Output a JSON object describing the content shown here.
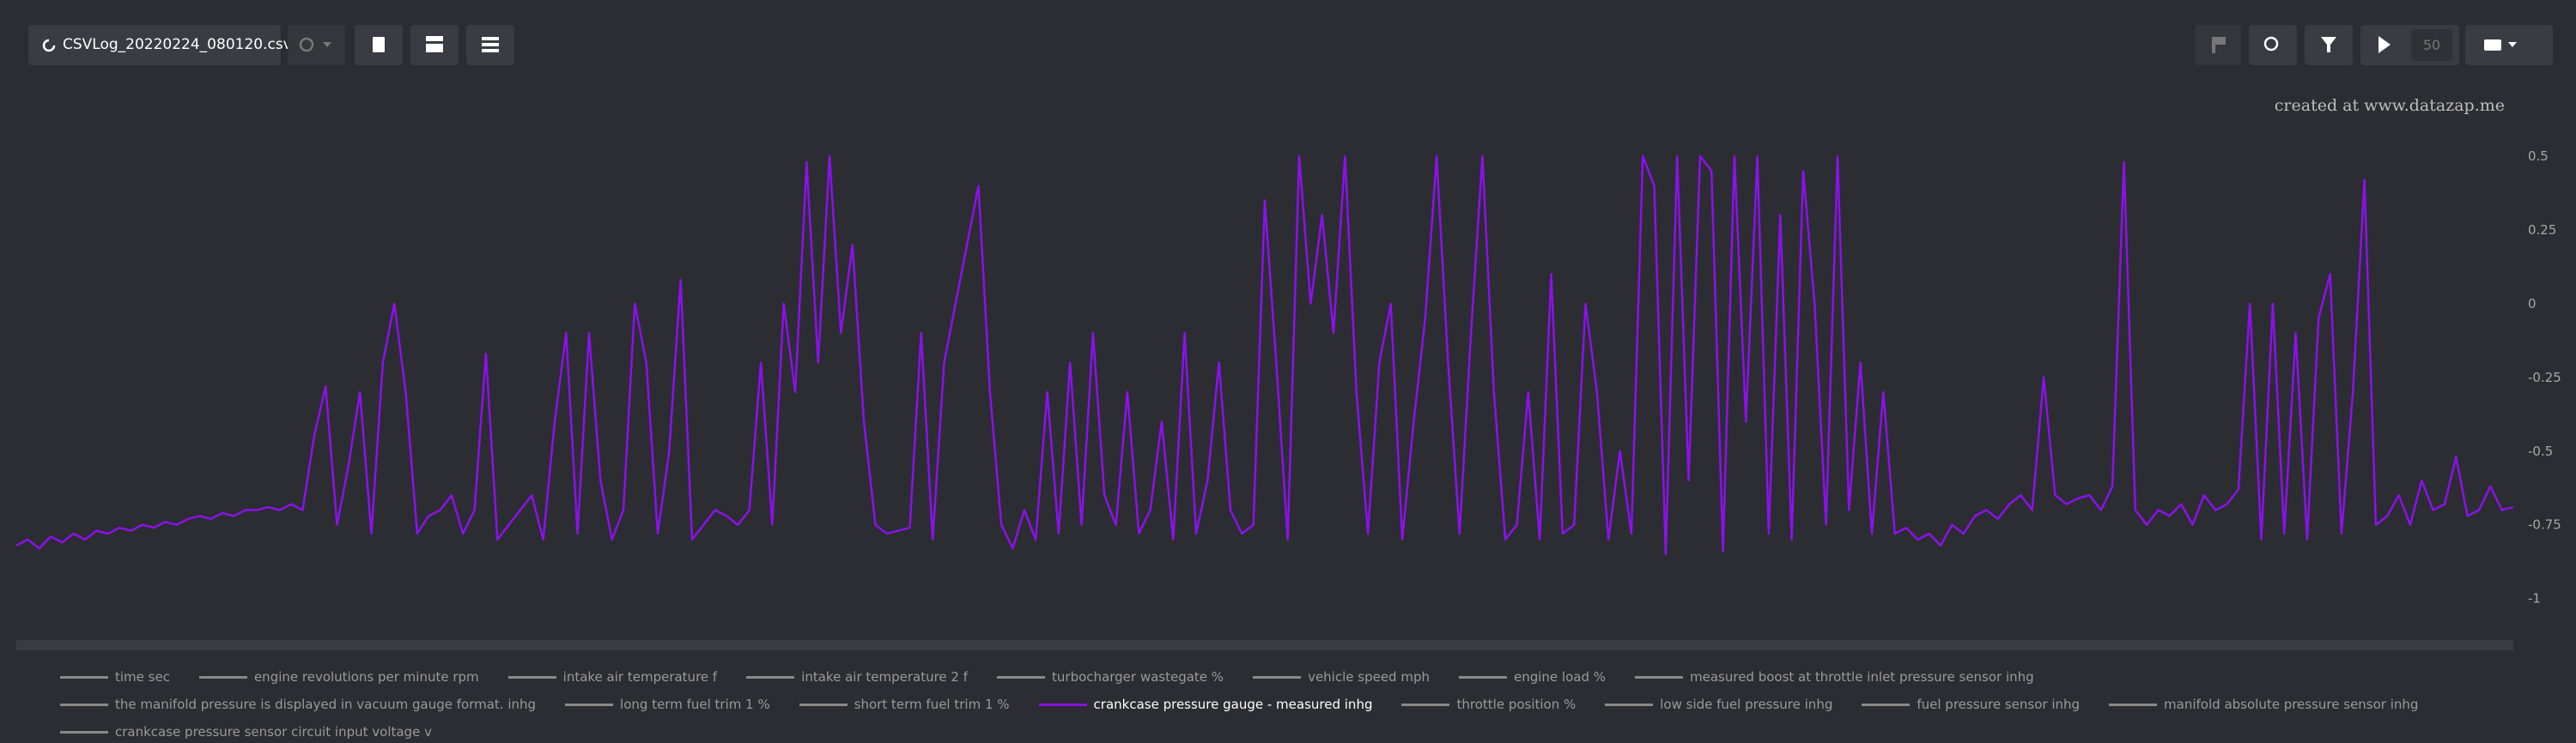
{
  "toolbar": {
    "file_name": "CSVLog_20220224_080120.csv",
    "playback_value": "50"
  },
  "watermark": "created at www.datazap.me",
  "chart_data": {
    "type": "line",
    "ylim": [
      -1.1,
      0.5
    ],
    "yticks": [
      0.5,
      0.25,
      0,
      -0.25,
      -0.5,
      -0.75,
      -1
    ],
    "series": [
      {
        "name": "time sec",
        "color": "#8a8a8a",
        "hidden": true
      },
      {
        "name": "engine revolutions per minute rpm",
        "color": "#8a8a8a",
        "hidden": true
      },
      {
        "name": "intake air temperature f",
        "color": "#8a8a8a",
        "hidden": true
      },
      {
        "name": "intake air temperature 2 f",
        "color": "#8a8a8a",
        "hidden": true
      },
      {
        "name": "turbocharger wastegate %",
        "color": "#8a8a8a",
        "hidden": true
      },
      {
        "name": "vehicle speed mph",
        "color": "#8a8a8a",
        "hidden": true
      },
      {
        "name": "engine load %",
        "color": "#8a8a8a",
        "hidden": true
      },
      {
        "name": "measured boost at throttle inlet pressure sensor inhg",
        "color": "#8a8a8a",
        "hidden": true
      },
      {
        "name": "the manifold pressure is displayed in vacuum gauge format. inhg",
        "color": "#8a8a8a",
        "hidden": true
      },
      {
        "name": "long term fuel trim 1 %",
        "color": "#8a8a8a",
        "hidden": true
      },
      {
        "name": "short term fuel trim 1 %",
        "color": "#8a8a8a",
        "hidden": true
      },
      {
        "name": "crankcase pressure gauge - measured inhg",
        "color": "#8a12e8",
        "hidden": false,
        "values": [
          -0.82,
          -0.8,
          -0.83,
          -0.79,
          -0.81,
          -0.78,
          -0.8,
          -0.77,
          -0.78,
          -0.76,
          -0.77,
          -0.75,
          -0.76,
          -0.74,
          -0.75,
          -0.73,
          -0.72,
          -0.73,
          -0.71,
          -0.72,
          -0.7,
          -0.7,
          -0.69,
          -0.7,
          -0.68,
          -0.7,
          -0.45,
          -0.28,
          -0.75,
          -0.55,
          -0.3,
          -0.78,
          -0.2,
          0.0,
          -0.3,
          -0.78,
          -0.72,
          -0.7,
          -0.65,
          -0.78,
          -0.7,
          -0.17,
          -0.8,
          -0.75,
          -0.7,
          -0.65,
          -0.8,
          -0.4,
          -0.1,
          -0.78,
          -0.1,
          -0.6,
          -0.8,
          -0.7,
          0.0,
          -0.2,
          -0.78,
          -0.5,
          0.08,
          -0.8,
          -0.75,
          -0.7,
          -0.72,
          -0.75,
          -0.7,
          -0.2,
          -0.75,
          0.0,
          -0.3,
          0.48,
          -0.2,
          0.5,
          -0.1,
          0.2,
          -0.4,
          -0.75,
          -0.78,
          -0.77,
          -0.76,
          -0.1,
          -0.8,
          -0.2,
          0.0,
          0.2,
          0.4,
          -0.3,
          -0.75,
          -0.83,
          -0.7,
          -0.8,
          -0.3,
          -0.78,
          -0.2,
          -0.75,
          -0.1,
          -0.65,
          -0.75,
          -0.3,
          -0.78,
          -0.7,
          -0.4,
          -0.8,
          -0.1,
          -0.78,
          -0.6,
          -0.2,
          -0.7,
          -0.78,
          -0.75,
          0.35,
          -0.2,
          -0.8,
          0.5,
          0.0,
          0.3,
          -0.1,
          0.5,
          -0.3,
          -0.78,
          -0.2,
          0.0,
          -0.8,
          -0.4,
          -0.05,
          0.5,
          -0.2,
          -0.78,
          -0.1,
          0.5,
          -0.3,
          -0.8,
          -0.75,
          -0.3,
          -0.8,
          0.1,
          -0.78,
          -0.75,
          0.0,
          -0.3,
          -0.8,
          -0.5,
          -0.78,
          0.5,
          0.4,
          -0.85,
          0.5,
          -0.6,
          0.5,
          0.45,
          -0.84,
          0.5,
          -0.4,
          0.5,
          -0.78,
          0.3,
          -0.8,
          0.45,
          0.0,
          -0.75,
          0.5,
          -0.7,
          -0.2,
          -0.78,
          -0.3,
          -0.78,
          -0.76,
          -0.8,
          -0.78,
          -0.82,
          -0.75,
          -0.78,
          -0.72,
          -0.7,
          -0.73,
          -0.68,
          -0.65,
          -0.7,
          -0.25,
          -0.65,
          -0.68,
          -0.66,
          -0.65,
          -0.7,
          -0.62,
          0.48,
          -0.7,
          -0.75,
          -0.7,
          -0.72,
          -0.68,
          -0.75,
          -0.65,
          -0.7,
          -0.68,
          -0.63,
          0.0,
          -0.8,
          0.0,
          -0.78,
          -0.1,
          -0.8,
          -0.05,
          0.1,
          -0.78,
          -0.3,
          0.42,
          -0.75,
          -0.72,
          -0.65,
          -0.75,
          -0.6,
          -0.7,
          -0.68,
          -0.52,
          -0.72,
          -0.7,
          -0.62,
          -0.7,
          -0.69
        ]
      },
      {
        "name": "throttle position %",
        "color": "#8a8a8a",
        "hidden": true
      },
      {
        "name": "low side fuel pressure inhg",
        "color": "#8a8a8a",
        "hidden": true
      },
      {
        "name": "fuel pressure sensor inhg",
        "color": "#8a8a8a",
        "hidden": true
      },
      {
        "name": "manifold absolute pressure sensor inhg",
        "color": "#8a8a8a",
        "hidden": true
      },
      {
        "name": "crankcase pressure sensor circuit input voltage v",
        "color": "#8a8a8a",
        "hidden": true
      }
    ]
  }
}
